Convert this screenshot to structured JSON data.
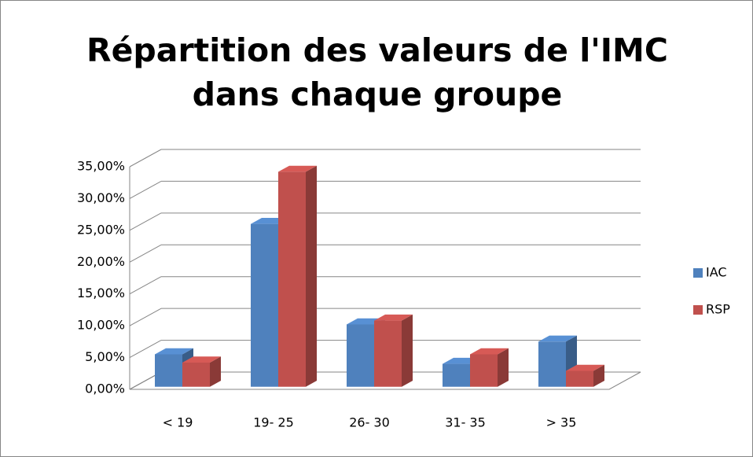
{
  "chart_data": {
    "type": "bar3d",
    "title": "Répartition des valeurs de l'IMC dans chaque groupe",
    "categories": [
      "< 19",
      "19- 25",
      "26- 30",
      "31- 35",
      "> 35"
    ],
    "series": [
      {
        "name": "IAC",
        "color": "#4f81bd",
        "values": [
          5.1,
          25.6,
          9.8,
          3.6,
          7.1
        ]
      },
      {
        "name": "RSP",
        "color": "#c0504d",
        "values": [
          3.8,
          33.8,
          10.4,
          5.1,
          2.5
        ]
      }
    ],
    "ylim": [
      0,
      35
    ],
    "yticks": [
      {
        "value": 0,
        "label": "0,00%"
      },
      {
        "value": 5,
        "label": "5,00%"
      },
      {
        "value": 10,
        "label": "10,00%"
      },
      {
        "value": 15,
        "label": "15,00%"
      },
      {
        "value": 20,
        "label": "20,00%"
      },
      {
        "value": 25,
        "label": "25,00%"
      },
      {
        "value": 30,
        "label": "30,00%"
      },
      {
        "value": 35,
        "label": "35,00%"
      }
    ],
    "grid": true,
    "legend": "right"
  }
}
